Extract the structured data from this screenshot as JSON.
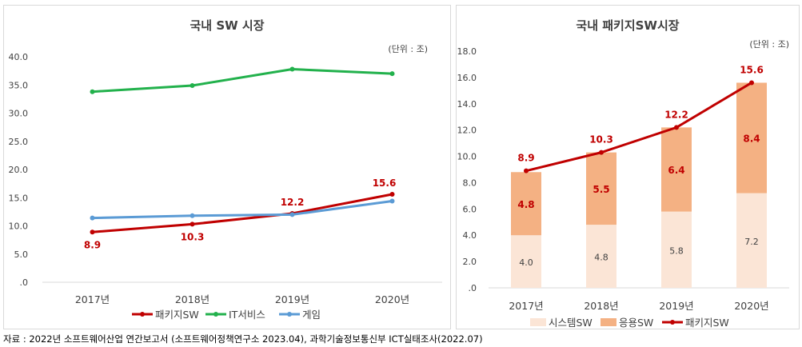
{
  "source": "자료 : 2022년 소프트웨어산업 연간보고서 (소프트웨어정책연구소 2023.04), 과학기술정보통신부 ICT실태조사(2022.07)",
  "chart_data": [
    {
      "type": "line",
      "title": "국내 SW 시장",
      "unit": "(단위 : 조)",
      "categories": [
        "2017년",
        "2018년",
        "2019년",
        "2020년"
      ],
      "ylim": [
        0,
        40
      ],
      "yticks": [
        ".0",
        "5.0",
        "10.0",
        "15.0",
        "20.0",
        "25.0",
        "30.0",
        "35.0",
        "40.0"
      ],
      "grid": false,
      "legend": "bottom",
      "series": [
        {
          "name": "패키지SW",
          "color": "#c00000",
          "values": [
            8.9,
            10.3,
            12.2,
            15.6
          ],
          "labels": [
            "8.9",
            "10.3",
            "12.2",
            "15.6"
          ]
        },
        {
          "name": "IT서비스",
          "color": "#22b14c",
          "values": [
            33.8,
            34.9,
            37.8,
            37.0
          ]
        },
        {
          "name": "게임",
          "color": "#5b9bd5",
          "values": [
            11.4,
            11.8,
            12.0,
            14.4
          ]
        }
      ]
    },
    {
      "type": "bar",
      "stacked": true,
      "title": "국내 패키지SW시장",
      "unit": "(단위 : 조)",
      "categories": [
        "2017년",
        "2018년",
        "2019년",
        "2020년"
      ],
      "ylim": [
        0,
        18
      ],
      "yticks": [
        ".0",
        "2.0",
        "4.0",
        "6.0",
        "8.0",
        "10.0",
        "12.0",
        "14.0",
        "16.0",
        "18.0"
      ],
      "grid": false,
      "legend": "bottom",
      "series": [
        {
          "name": "시스템SW",
          "color": "#fbe5d6",
          "values": [
            4.0,
            4.8,
            5.8,
            7.2
          ],
          "labels": [
            "4.0",
            "4.8",
            "5.8",
            "7.2"
          ]
        },
        {
          "name": "응용SW",
          "color": "#f4b183",
          "values": [
            4.8,
            5.5,
            6.4,
            8.4
          ],
          "labels": [
            "4.8",
            "5.5",
            "6.4",
            "8.4"
          ]
        },
        {
          "name": "패키지SW",
          "type": "line",
          "color": "#c00000",
          "values": [
            8.9,
            10.3,
            12.2,
            15.6
          ],
          "labels": [
            "8.9",
            "10.3",
            "12.2",
            "15.6"
          ]
        }
      ]
    }
  ]
}
